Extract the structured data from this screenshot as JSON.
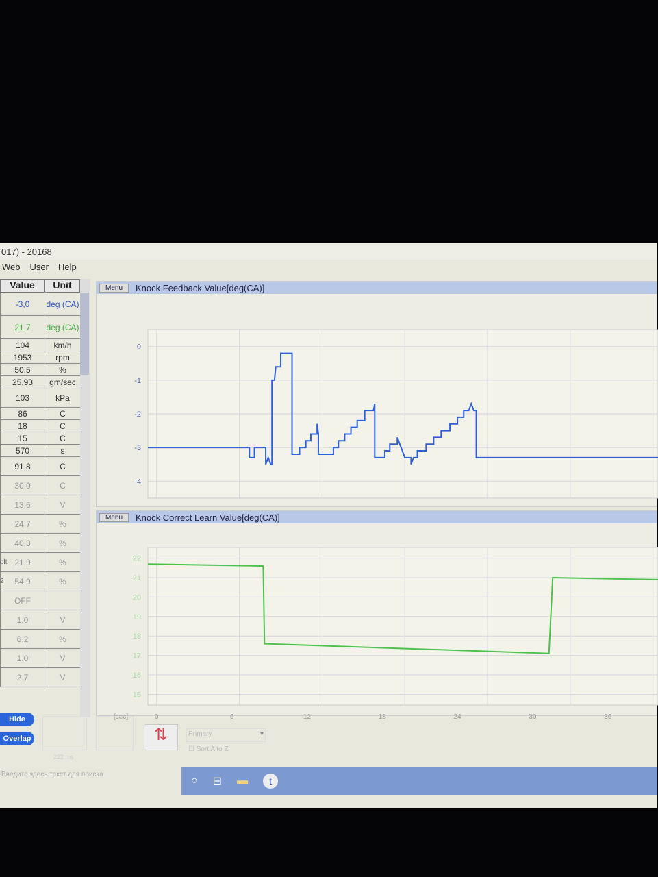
{
  "window": {
    "title": "017) - 20168"
  },
  "menu": [
    "Web",
    "User",
    "Help"
  ],
  "table": {
    "headers": [
      "Value",
      "Unit"
    ],
    "rows": [
      {
        "label": "",
        "value": "-3,0",
        "unit": "deg (CA)",
        "color": "#2d55c8"
      },
      {
        "label": "",
        "value": "21,7",
        "unit": "deg (CA)",
        "color": "#3fae3f"
      },
      {
        "label": "",
        "value": "104",
        "unit": "km/h"
      },
      {
        "label": "",
        "value": "1953",
        "unit": "rpm"
      },
      {
        "label": "",
        "value": "50,5",
        "unit": "%"
      },
      {
        "label": "",
        "value": "25,93",
        "unit": "gm/sec"
      },
      {
        "label": "",
        "value": "103",
        "unit": "kPa"
      },
      {
        "label": "",
        "value": "86",
        "unit": "C"
      },
      {
        "label": "",
        "value": "18",
        "unit": "C"
      },
      {
        "label": "",
        "value": "15",
        "unit": "C"
      },
      {
        "label": "",
        "value": "570",
        "unit": "s"
      },
      {
        "label": "",
        "value": "91,8",
        "unit": "C"
      },
      {
        "label": "",
        "value": "30,0",
        "unit": "C"
      },
      {
        "label": "",
        "value": "13,6",
        "unit": "V"
      },
      {
        "label": "",
        "value": "24,7",
        "unit": "%"
      },
      {
        "label": "",
        "value": "40,3",
        "unit": "%"
      },
      {
        "label": "olt",
        "value": "21,9",
        "unit": "%"
      },
      {
        "label": "2",
        "value": "54,9",
        "unit": "%"
      },
      {
        "label": "",
        "value": "OFF",
        "unit": ""
      },
      {
        "label": "",
        "value": "1,0",
        "unit": "V"
      },
      {
        "label": "",
        "value": "6,2",
        "unit": "%"
      },
      {
        "label": "",
        "value": "1,0",
        "unit": "V"
      },
      {
        "label": "",
        "value": "2,7",
        "unit": "V"
      }
    ]
  },
  "buttons": {
    "hide": "Hide",
    "overlap": "Overlap",
    "menu": "Menu"
  },
  "bottom": {
    "dropdown": "Primary",
    "sort": "Sort A to Z",
    "ms": "222 ms",
    "search_placeholder": "Введите здесь текст для поиска"
  },
  "chart_data": [
    {
      "type": "line",
      "title": "Knock Feedback Value[deg(CA)]",
      "color": "#2d5fd8",
      "ylim": [
        -4.3,
        0.3
      ],
      "yticks": [
        0,
        -1,
        -2,
        -3,
        -4
      ],
      "xlim": [
        -0.7,
        40
      ],
      "points": [
        [
          -0.7,
          -3.0
        ],
        [
          7.4,
          -3.0
        ],
        [
          7.4,
          -3.3
        ],
        [
          7.8,
          -3.3
        ],
        [
          7.8,
          -3.0
        ],
        [
          8.7,
          -3.0
        ],
        [
          8.7,
          -3.5
        ],
        [
          8.9,
          -3.3
        ],
        [
          9.1,
          -3.5
        ],
        [
          9.2,
          -3.5
        ],
        [
          9.2,
          -1.0
        ],
        [
          9.4,
          -1.0
        ],
        [
          9.5,
          -0.6
        ],
        [
          9.9,
          -0.6
        ],
        [
          9.9,
          -0.2
        ],
        [
          10.8,
          -0.2
        ],
        [
          10.8,
          -3.2
        ],
        [
          11.4,
          -3.2
        ],
        [
          11.4,
          -3.0
        ],
        [
          11.9,
          -3.0
        ],
        [
          11.9,
          -2.8
        ],
        [
          12.3,
          -2.8
        ],
        [
          12.3,
          -2.6
        ],
        [
          12.8,
          -2.6
        ],
        [
          12.8,
          -2.3
        ],
        [
          12.9,
          -2.6
        ],
        [
          12.9,
          -3.2
        ],
        [
          14.1,
          -3.2
        ],
        [
          14.1,
          -3.0
        ],
        [
          14.5,
          -3.0
        ],
        [
          14.5,
          -2.8
        ],
        [
          15.0,
          -2.8
        ],
        [
          15.0,
          -2.6
        ],
        [
          15.5,
          -2.6
        ],
        [
          15.5,
          -2.4
        ],
        [
          16.0,
          -2.4
        ],
        [
          16.0,
          -2.2
        ],
        [
          16.6,
          -2.2
        ],
        [
          16.6,
          -1.9
        ],
        [
          17.3,
          -1.9
        ],
        [
          17.4,
          -1.7
        ],
        [
          17.4,
          -3.3
        ],
        [
          18.2,
          -3.3
        ],
        [
          18.2,
          -3.1
        ],
        [
          18.6,
          -3.1
        ],
        [
          18.6,
          -2.9
        ],
        [
          19.2,
          -2.9
        ],
        [
          19.2,
          -2.7
        ],
        [
          19.4,
          -2.9
        ],
        [
          19.6,
          -3.1
        ],
        [
          19.8,
          -3.3
        ],
        [
          20.3,
          -3.3
        ],
        [
          20.3,
          -3.5
        ],
        [
          20.5,
          -3.3
        ],
        [
          20.8,
          -3.3
        ],
        [
          20.8,
          -3.1
        ],
        [
          21.5,
          -3.1
        ],
        [
          21.5,
          -2.9
        ],
        [
          22.1,
          -2.9
        ],
        [
          22.1,
          -2.7
        ],
        [
          22.7,
          -2.7
        ],
        [
          22.7,
          -2.5
        ],
        [
          23.4,
          -2.5
        ],
        [
          23.4,
          -2.3
        ],
        [
          24.0,
          -2.3
        ],
        [
          24.0,
          -2.1
        ],
        [
          24.5,
          -2.1
        ],
        [
          24.5,
          -1.9
        ],
        [
          24.9,
          -1.9
        ],
        [
          25.1,
          -1.7
        ],
        [
          25.3,
          -1.9
        ],
        [
          25.5,
          -1.9
        ],
        [
          25.5,
          -3.3
        ],
        [
          40,
          -3.3
        ]
      ]
    },
    {
      "type": "line",
      "title": "Knock Correct Learn Value[deg(CA)]",
      "color": "#4cc24c",
      "ylim": [
        14.8,
        22.2
      ],
      "yticks": [
        22,
        21,
        20,
        19,
        18,
        17,
        16,
        15
      ],
      "xlim": [
        -0.7,
        40
      ],
      "xlabel": "[sec]",
      "xticks": [
        0,
        6,
        12,
        18,
        24,
        30,
        36
      ],
      "points": [
        [
          -0.7,
          21.7
        ],
        [
          8.5,
          21.6
        ],
        [
          8.6,
          17.6
        ],
        [
          31.3,
          17.1
        ],
        [
          31.6,
          21.0
        ],
        [
          40,
          20.9
        ]
      ]
    }
  ]
}
